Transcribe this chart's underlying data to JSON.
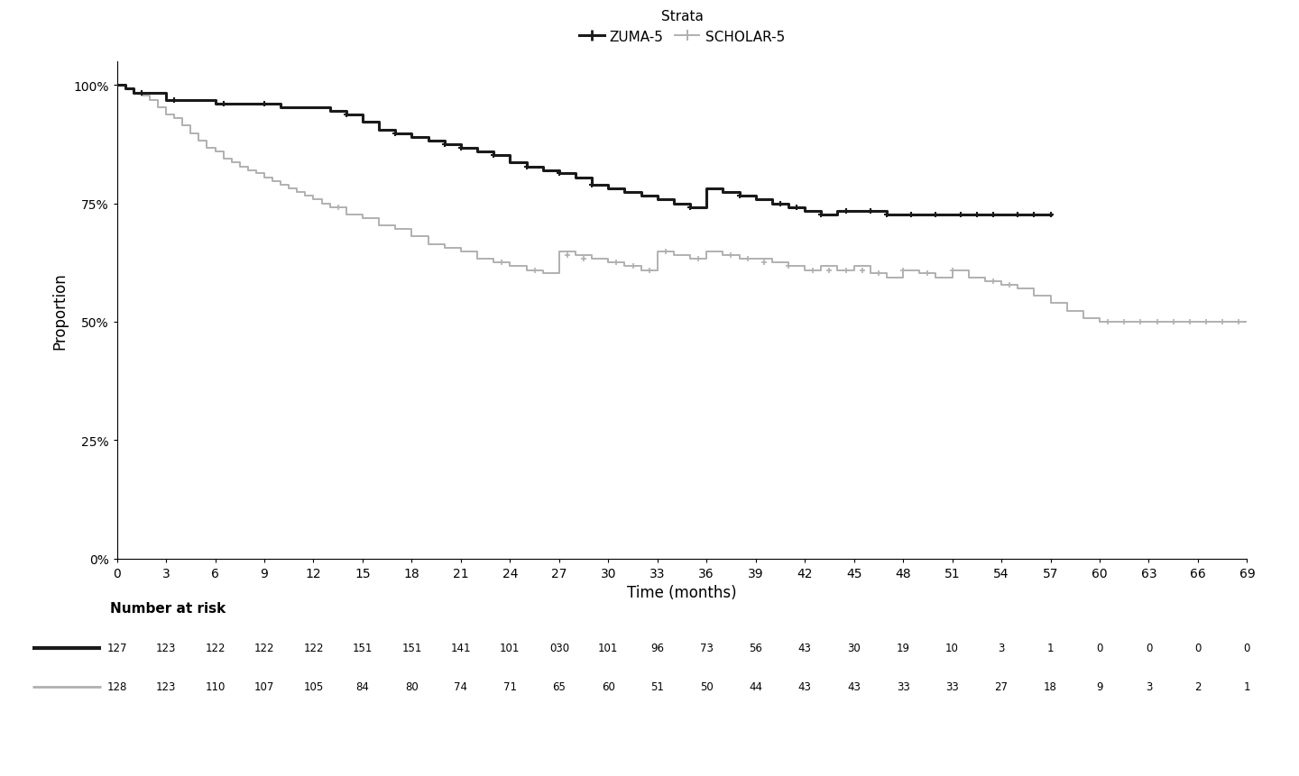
{
  "legend_title": "Strata",
  "xlabel": "Time (months)",
  "ylabel": "Proportion",
  "xlim": [
    0,
    69
  ],
  "ylim": [
    0,
    1.05
  ],
  "xticks": [
    0,
    3,
    6,
    9,
    12,
    15,
    18,
    21,
    24,
    27,
    30,
    33,
    36,
    39,
    42,
    45,
    48,
    51,
    54,
    57,
    60,
    63,
    66,
    69
  ],
  "yticks": [
    0.0,
    0.25,
    0.5,
    0.75,
    1.0
  ],
  "ytick_labels": [
    "0%",
    "25%",
    "50%",
    "75%",
    "100%"
  ],
  "zuma5_color": "#1a1a1a",
  "scholar5_color": "#b0b0b0",
  "zuma5_lw": 2.2,
  "scholar5_lw": 1.4,
  "zuma5_x": [
    0,
    0.5,
    1.0,
    1.5,
    2.0,
    3.0,
    4.0,
    5.0,
    6.0,
    7.0,
    8.0,
    9.0,
    10.0,
    11.0,
    12.0,
    13.0,
    14.0,
    15.0,
    16.0,
    17.0,
    18.0,
    19.0,
    20.0,
    21.0,
    22.0,
    23.0,
    24.0,
    25.0,
    26.0,
    27.0,
    28.0,
    29.0,
    30.0,
    31.0,
    32.0,
    33.0,
    34.0,
    35.0,
    36.0,
    37.0,
    38.0,
    39.0,
    40.0,
    41.0,
    42.0,
    43.0,
    44.0,
    45.0,
    46.0,
    47.0,
    48.0,
    49.0,
    50.0,
    51.0,
    52.0,
    53.0,
    54.0,
    55.0,
    56.0,
    57.0
  ],
  "zuma5_y": [
    1.0,
    0.992,
    0.984,
    0.984,
    0.984,
    0.969,
    0.969,
    0.969,
    0.961,
    0.961,
    0.961,
    0.961,
    0.953,
    0.953,
    0.953,
    0.945,
    0.938,
    0.922,
    0.906,
    0.898,
    0.891,
    0.883,
    0.875,
    0.867,
    0.859,
    0.852,
    0.836,
    0.828,
    0.82,
    0.813,
    0.805,
    0.789,
    0.781,
    0.773,
    0.766,
    0.758,
    0.75,
    0.742,
    0.781,
    0.773,
    0.766,
    0.758,
    0.75,
    0.742,
    0.734,
    0.727,
    0.734,
    0.734,
    0.734,
    0.727,
    0.727,
    0.727,
    0.727,
    0.727,
    0.727,
    0.727,
    0.727,
    0.727,
    0.727,
    0.727
  ],
  "scholar5_x": [
    0,
    0.5,
    1.0,
    1.5,
    2.0,
    2.5,
    3.0,
    3.5,
    4.0,
    4.5,
    5.0,
    5.5,
    6.0,
    6.5,
    7.0,
    7.5,
    8.0,
    8.5,
    9.0,
    9.5,
    10.0,
    10.5,
    11.0,
    11.5,
    12.0,
    12.5,
    13.0,
    14.0,
    15.0,
    16.0,
    17.0,
    18.0,
    19.0,
    20.0,
    21.0,
    22.0,
    23.0,
    24.0,
    25.0,
    26.0,
    27.0,
    28.0,
    29.0,
    30.0,
    31.0,
    32.0,
    33.0,
    34.0,
    35.0,
    36.0,
    37.0,
    38.0,
    39.0,
    40.0,
    41.0,
    42.0,
    43.0,
    44.0,
    45.0,
    46.0,
    47.0,
    48.0,
    49.0,
    50.0,
    51.0,
    52.0,
    53.0,
    54.0,
    55.0,
    56.0,
    57.0,
    58.0,
    59.0,
    60.0,
    61.0,
    62.0,
    63.0,
    64.0,
    65.0,
    66.0,
    67.0,
    68.0,
    69.0
  ],
  "scholar5_y": [
    1.0,
    0.992,
    0.984,
    0.977,
    0.969,
    0.953,
    0.938,
    0.93,
    0.914,
    0.898,
    0.883,
    0.867,
    0.859,
    0.844,
    0.836,
    0.828,
    0.82,
    0.813,
    0.805,
    0.797,
    0.789,
    0.781,
    0.773,
    0.766,
    0.758,
    0.75,
    0.742,
    0.727,
    0.719,
    0.703,
    0.695,
    0.68,
    0.664,
    0.656,
    0.648,
    0.633,
    0.625,
    0.617,
    0.609,
    0.602,
    0.648,
    0.641,
    0.633,
    0.625,
    0.617,
    0.609,
    0.648,
    0.641,
    0.633,
    0.648,
    0.641,
    0.633,
    0.633,
    0.625,
    0.617,
    0.609,
    0.617,
    0.609,
    0.617,
    0.602,
    0.594,
    0.609,
    0.602,
    0.594,
    0.609,
    0.594,
    0.586,
    0.578,
    0.57,
    0.555,
    0.539,
    0.523,
    0.508,
    0.5,
    0.5,
    0.5,
    0.5,
    0.5,
    0.5,
    0.5,
    0.5,
    0.5,
    0.5
  ],
  "zuma5_censors_x": [
    1.5,
    3.5,
    6.5,
    9.0,
    14.0,
    17.0,
    20.0,
    21.0,
    23.0,
    25.0,
    27.0,
    29.0,
    35.0,
    38.0,
    40.5,
    41.5,
    43.0,
    44.5,
    46.0,
    47.0,
    48.5,
    50.0,
    51.5,
    52.5,
    53.5,
    55.0,
    56.0,
    57.0
  ],
  "zuma5_censors_y": [
    0.984,
    0.969,
    0.961,
    0.961,
    0.938,
    0.898,
    0.875,
    0.867,
    0.852,
    0.828,
    0.813,
    0.789,
    0.742,
    0.766,
    0.75,
    0.742,
    0.727,
    0.734,
    0.734,
    0.727,
    0.727,
    0.727,
    0.727,
    0.727,
    0.727,
    0.727,
    0.727,
    0.727
  ],
  "scholar5_censors_x": [
    13.5,
    23.5,
    25.5,
    27.5,
    28.5,
    30.5,
    31.5,
    32.5,
    33.5,
    35.5,
    37.5,
    38.5,
    39.5,
    41.0,
    42.5,
    43.5,
    44.5,
    45.5,
    46.5,
    48.0,
    49.5,
    51.0,
    53.5,
    54.5,
    60.5,
    61.5,
    62.5,
    63.5,
    64.5,
    65.5,
    66.5,
    67.5,
    68.5
  ],
  "scholar5_censors_y": [
    0.742,
    0.625,
    0.609,
    0.641,
    0.633,
    0.625,
    0.617,
    0.609,
    0.648,
    0.633,
    0.641,
    0.633,
    0.625,
    0.617,
    0.609,
    0.609,
    0.609,
    0.609,
    0.602,
    0.609,
    0.602,
    0.609,
    0.586,
    0.578,
    0.5,
    0.5,
    0.5,
    0.5,
    0.5,
    0.5,
    0.5,
    0.5,
    0.5
  ],
  "risk_times": [
    0,
    3,
    6,
    9,
    12,
    15,
    18,
    21,
    24,
    27,
    30,
    33,
    36,
    39,
    42,
    45,
    48,
    51,
    54,
    57,
    60,
    63,
    66,
    69
  ],
  "zuma5_risk": [
    "127",
    "123",
    "122",
    "122",
    "122",
    "151",
    "151",
    "141",
    "101",
    "030",
    "101",
    "96",
    "73",
    "56",
    "43",
    "30",
    "19",
    "10",
    "3",
    "1",
    "0",
    "0",
    "0",
    "0"
  ],
  "scholar5_risk": [
    "128",
    "123",
    "110",
    "107",
    "105",
    "84",
    "80",
    "74",
    "71",
    "65",
    "60",
    "51",
    "50",
    "44",
    "43",
    "43",
    "33",
    "33",
    "27",
    "18",
    "9",
    "3",
    "2",
    "1"
  ],
  "risk_label": "Number at risk",
  "background_color": "#ffffff"
}
